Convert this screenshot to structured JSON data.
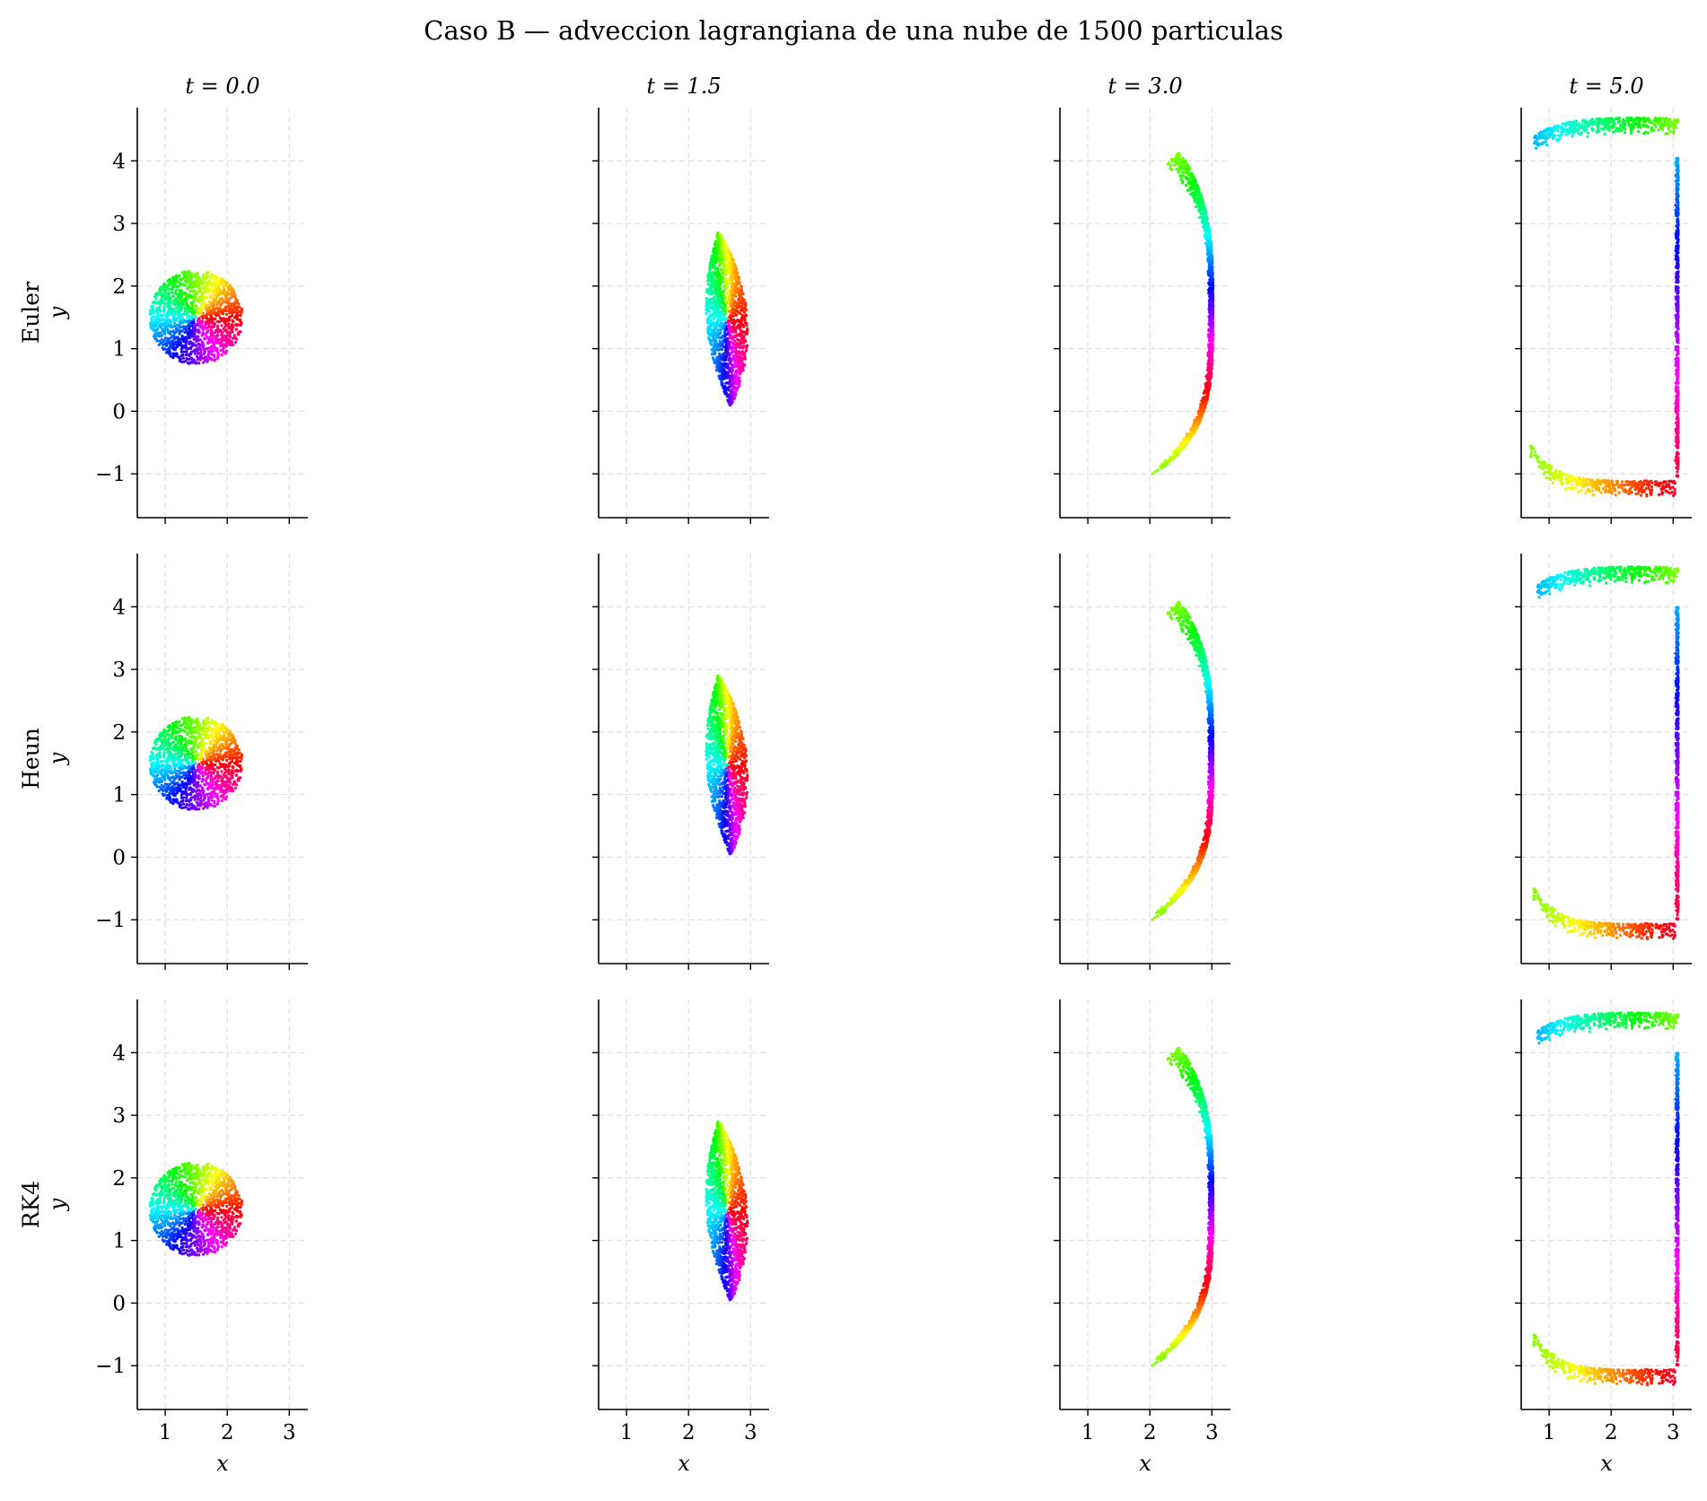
{
  "chart_data": {
    "type": "scatter",
    "title": "Caso B — adveccion lagrangiana de una nube de 1500 particulas",
    "particle_count": 1500,
    "time_labels": [
      "t = 0.0",
      "t = 1.5",
      "t = 3.0",
      "t = 5.0"
    ],
    "methods": [
      "Euler",
      "Heun",
      "RK4"
    ],
    "xlabel": "x",
    "ylabel": "y",
    "xlim": [
      0.55,
      3.3
    ],
    "ylim": [
      -1.7,
      4.85
    ],
    "xticks": [
      1,
      2,
      3
    ],
    "yticks": [
      -1,
      0,
      1,
      2,
      3,
      4
    ],
    "xtick_labels": [
      "1",
      "2",
      "3"
    ],
    "ytick_labels": [
      "−1",
      "0",
      "1",
      "2",
      "3",
      "4"
    ],
    "grid": true,
    "colormap": "hsv by initial polar angle",
    "initial_cloud": {
      "center": [
        1.5,
        1.5
      ],
      "radius": 0.75
    },
    "snapshots": [
      {
        "method": "Euler",
        "t": 0.0,
        "shape": "disk",
        "center": [
          1.5,
          1.5
        ],
        "radius": 0.75
      },
      {
        "method": "Euler",
        "t": 1.5,
        "shape": "lens",
        "x_range": [
          2.05,
          2.95
        ],
        "y_range": [
          0.05,
          2.9
        ]
      },
      {
        "method": "Euler",
        "t": 3.0,
        "shape": "arc",
        "x_range": [
          2.0,
          3.05
        ],
        "y_range": [
          -0.95,
          4.05
        ]
      },
      {
        "method": "Euler",
        "t": 5.0,
        "shape": "bracket",
        "x_range": [
          0.7,
          3.1
        ],
        "y_range": [
          -1.35,
          4.5
        ]
      },
      {
        "method": "Heun",
        "t": 0.0,
        "shape": "disk",
        "center": [
          1.5,
          1.5
        ],
        "radius": 0.75
      },
      {
        "method": "Heun",
        "t": 1.5,
        "shape": "lens",
        "x_range": [
          2.05,
          2.95
        ],
        "y_range": [
          0.0,
          2.95
        ]
      },
      {
        "method": "Heun",
        "t": 3.0,
        "shape": "arc",
        "x_range": [
          1.85,
          3.05
        ],
        "y_range": [
          -0.95,
          4.0
        ]
      },
      {
        "method": "Heun",
        "t": 5.0,
        "shape": "bracket",
        "x_range": [
          0.75,
          3.1
        ],
        "y_range": [
          -1.3,
          4.45
        ]
      },
      {
        "method": "RK4",
        "t": 0.0,
        "shape": "disk",
        "center": [
          1.5,
          1.5
        ],
        "radius": 0.75
      },
      {
        "method": "RK4",
        "t": 1.5,
        "shape": "lens",
        "x_range": [
          2.05,
          2.95
        ],
        "y_range": [
          0.0,
          2.95
        ]
      },
      {
        "method": "RK4",
        "t": 3.0,
        "shape": "arc",
        "x_range": [
          1.85,
          3.05
        ],
        "y_range": [
          -0.95,
          4.0
        ]
      },
      {
        "method": "RK4",
        "t": 5.0,
        "shape": "bracket",
        "x_range": [
          0.75,
          3.1
        ],
        "y_range": [
          -1.3,
          4.45
        ]
      }
    ]
  }
}
